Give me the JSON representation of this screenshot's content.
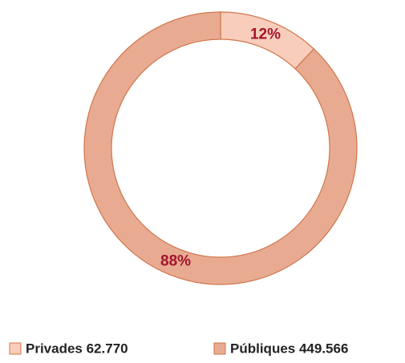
{
  "chart_data": {
    "type": "donut",
    "categories": [
      "Privades 62.770",
      "Públiques 449.566"
    ],
    "values": [
      12,
      88
    ],
    "value_labels": [
      "12%",
      "88%"
    ],
    "colors": [
      "#f8cdbb",
      "#e8ab92"
    ],
    "legend": "bottom"
  }
}
